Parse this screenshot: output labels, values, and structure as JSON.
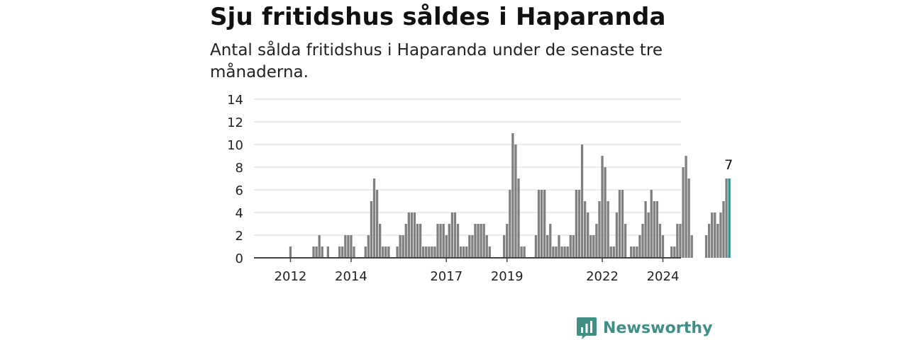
{
  "header": {
    "title": "Sju fritidshus såldes i Haparanda",
    "subtitle": "Antal sålda fritidshus i Haparanda under de senaste tre månaderna."
  },
  "brand": {
    "name": "Newsworthy"
  },
  "colors": {
    "bar": "#808080",
    "highlight": "#1a9a93",
    "grid": "#d9d9d9",
    "axis": "#444444",
    "logo": "#3f8f87"
  },
  "chart_data": {
    "type": "bar",
    "ylim": [
      0,
      14
    ],
    "y_ticks": [
      0,
      2,
      4,
      6,
      8,
      10,
      12,
      14
    ],
    "x_tick_labels": [
      {
        "label": "2012",
        "index": 6
      },
      {
        "label": "2014",
        "index": 27
      },
      {
        "label": "2017",
        "index": 60
      },
      {
        "label": "2019",
        "index": 81
      },
      {
        "label": "2022",
        "index": 114
      },
      {
        "label": "2024",
        "index": 135
      }
    ],
    "values": [
      0,
      0,
      0,
      0,
      0,
      0,
      1,
      0,
      0,
      0,
      0,
      0,
      0,
      0,
      1,
      1,
      2,
      1,
      0,
      1,
      0,
      0,
      0,
      1,
      1,
      2,
      2,
      2,
      1,
      0,
      0,
      0,
      1,
      2,
      5,
      7,
      6,
      3,
      1,
      1,
      1,
      0,
      0,
      1,
      2,
      2,
      3,
      4,
      4,
      4,
      3,
      3,
      1,
      1,
      1,
      1,
      1,
      3,
      3,
      3,
      2,
      3,
      4,
      4,
      3,
      1,
      1,
      1,
      2,
      2,
      3,
      3,
      3,
      3,
      2,
      1,
      0,
      0,
      0,
      0,
      2,
      3,
      6,
      11,
      10,
      7,
      1,
      1,
      0,
      0,
      0,
      2,
      6,
      6,
      6,
      2,
      3,
      1,
      1,
      2,
      1,
      1,
      1,
      2,
      2,
      6,
      6,
      10,
      5,
      4,
      2,
      2,
      3,
      5,
      9,
      8,
      5,
      1,
      1,
      4,
      6,
      6,
      3,
      0,
      1,
      1,
      1,
      2,
      3,
      5,
      4,
      6,
      5,
      5,
      3,
      2,
      0,
      0,
      1,
      1,
      3,
      3,
      8,
      9,
      7,
      2,
      0,
      0,
      0,
      0,
      2,
      3,
      4,
      4,
      3,
      4,
      5,
      7,
      7
    ],
    "last_value_label": "7",
    "highlight_last": true
  }
}
